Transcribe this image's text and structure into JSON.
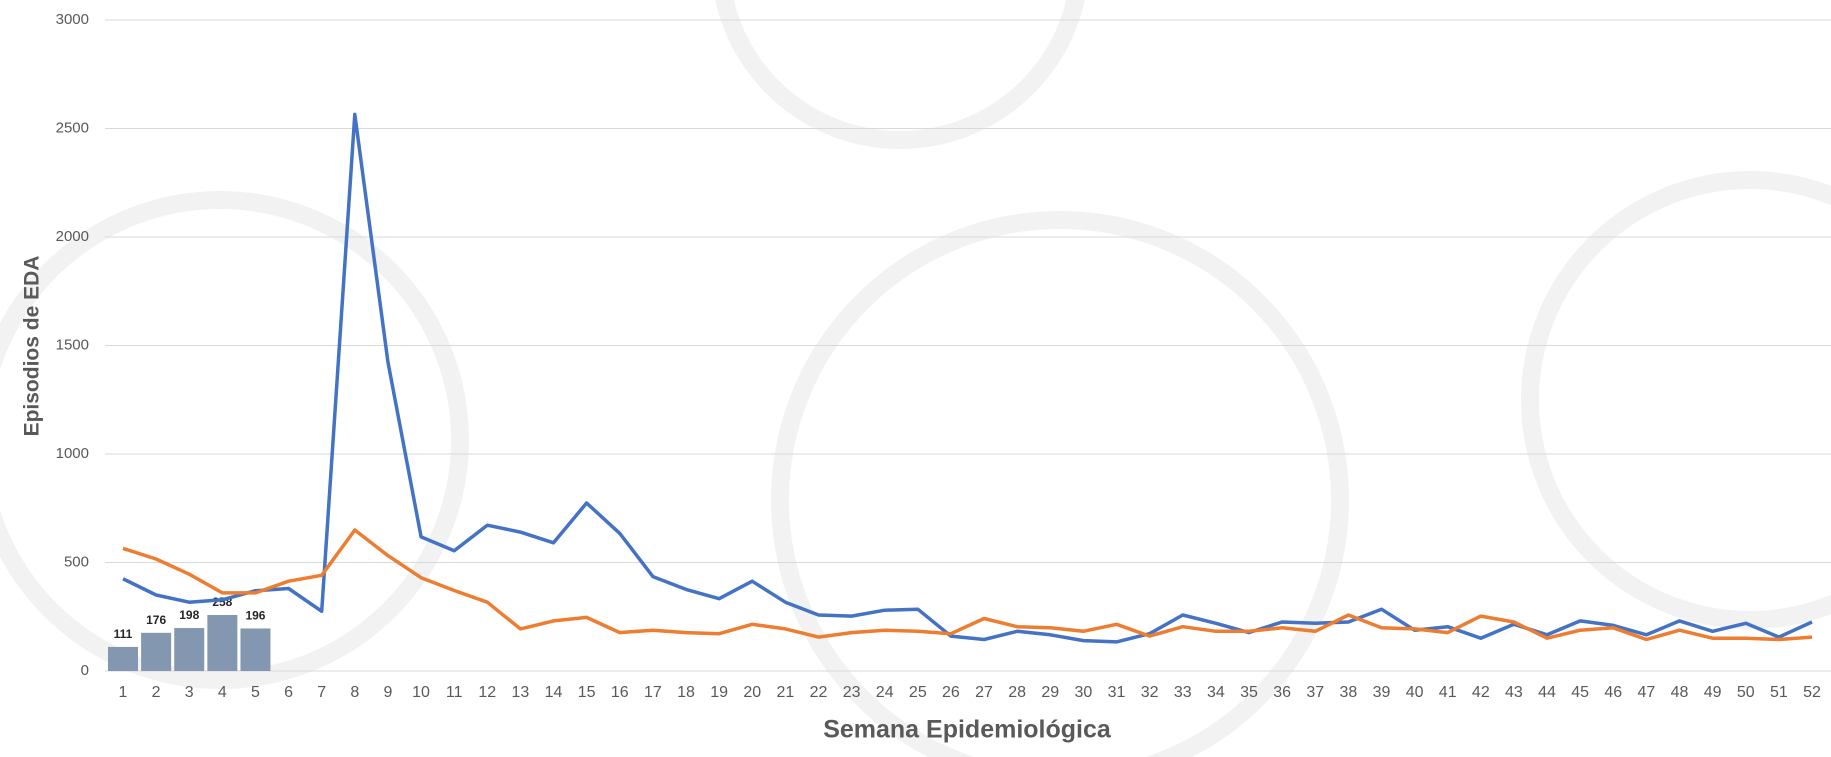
{
  "chart_data": {
    "type": "line",
    "x_label": "Semana Epidemiológica",
    "y_label": "Episodios de EDA",
    "categories": [
      "1",
      "2",
      "3",
      "4",
      "5",
      "6",
      "7",
      "8",
      "9",
      "10",
      "11",
      "12",
      "13",
      "14",
      "15",
      "16",
      "17",
      "18",
      "19",
      "20",
      "21",
      "22",
      "23",
      "24",
      "25",
      "26",
      "27",
      "28",
      "29",
      "30",
      "31",
      "32",
      "33",
      "34",
      "35",
      "36",
      "37",
      "38",
      "39",
      "40",
      "41",
      "42",
      "43",
      "44",
      "45",
      "46",
      "47",
      "48",
      "49",
      "50",
      "51",
      "52"
    ],
    "ylim": [
      0,
      3000
    ],
    "yticks": [
      0,
      500,
      1000,
      1500,
      2000,
      2500,
      3000
    ],
    "grid": true,
    "series": [
      {
        "kind": "bar",
        "color": "#8497b0",
        "values": [
          111,
          176,
          198,
          258,
          196,
          null,
          null,
          null,
          null,
          null,
          null,
          null,
          null,
          null,
          null,
          null,
          null,
          null,
          null,
          null,
          null,
          null,
          null,
          null,
          null,
          null,
          null,
          null,
          null,
          null,
          null,
          null,
          null,
          null,
          null,
          null,
          null,
          null,
          null,
          null,
          null,
          null,
          null,
          null,
          null,
          null,
          null,
          null,
          null,
          null,
          null,
          null
        ]
      },
      {
        "kind": "line",
        "color": "#4472c4",
        "values": [
          425,
          350,
          317,
          328,
          370,
          380,
          275,
          2565,
          1425,
          618,
          554,
          672,
          640,
          591,
          774,
          634,
          435,
          376,
          333,
          414,
          317,
          258,
          253,
          280,
          285,
          161,
          145,
          183,
          167,
          140,
          134,
          172,
          258,
          220,
          177,
          226,
          220,
          226,
          285,
          188,
          204,
          151,
          215,
          167,
          231,
          210,
          167,
          231,
          183,
          220,
          156,
          226
        ]
      },
      {
        "kind": "line",
        "color": "#ed7d31",
        "values": [
          565,
          516,
          446,
          360,
          360,
          414,
          441,
          650,
          532,
          430,
          371,
          317,
          194,
          231,
          247,
          177,
          188,
          177,
          172,
          215,
          194,
          156,
          177,
          188,
          183,
          172,
          242,
          204,
          199,
          183,
          215,
          161,
          204,
          183,
          183,
          199,
          183,
          258,
          199,
          194,
          177,
          253,
          226,
          151,
          188,
          199,
          145,
          188,
          151,
          151,
          145,
          156
        ]
      }
    ]
  }
}
